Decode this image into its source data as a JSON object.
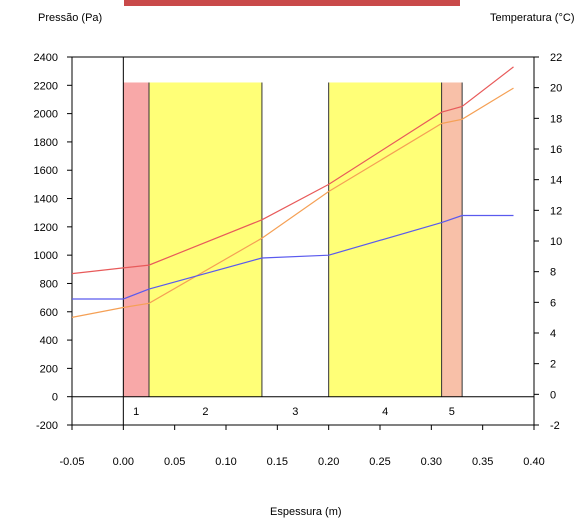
{
  "chart_data": {
    "type": "line",
    "title": "",
    "xlabel": "Espessura (m)",
    "ylabel": "Pressão (Pa)",
    "y2label": "Temperatura (°C)",
    "xlim": [
      -0.05,
      0.4
    ],
    "ylim": [
      -200,
      2400
    ],
    "y2lim": [
      -2,
      22
    ],
    "xticks": [
      "-0.05",
      "0.00",
      "0.05",
      "0.10",
      "0.15",
      "0.20",
      "0.25",
      "0.30",
      "0.35",
      "0.40"
    ],
    "yticks": [
      "2400",
      "2200",
      "2000",
      "1800",
      "1600",
      "1400",
      "1200",
      "1000",
      "800",
      "600",
      "400",
      "200",
      "0",
      "-200"
    ],
    "y2ticks": [
      "22",
      "20",
      "18",
      "16",
      "14",
      "12",
      "10",
      "8",
      "6",
      "4",
      "2",
      "0",
      "-2"
    ],
    "layers": [
      {
        "label": "1",
        "x0": 0.0,
        "x1": 0.025,
        "color": "#f8a8a8"
      },
      {
        "label": "2",
        "x0": 0.025,
        "x1": 0.135,
        "color": "#ffff77"
      },
      {
        "label": "3",
        "x0": 0.135,
        "x1": 0.2,
        "color": "#ffffff"
      },
      {
        "label": "4",
        "x0": 0.2,
        "x1": 0.31,
        "color": "#ffff77"
      },
      {
        "label": "5",
        "x0": 0.31,
        "x1": 0.33,
        "color": "#f8c0a8"
      }
    ],
    "series": [
      {
        "axis": "left",
        "color": "#e85a5a",
        "x": [
          -0.05,
          0.0,
          0.025,
          0.135,
          0.2,
          0.31,
          0.33,
          0.38
        ],
        "y": [
          870,
          910,
          930,
          1250,
          1500,
          2010,
          2050,
          2330
        ]
      },
      {
        "axis": "left",
        "color": "#f5a055",
        "x": [
          -0.05,
          0.0,
          0.025,
          0.135,
          0.2,
          0.31,
          0.33,
          0.38
        ],
        "y": [
          560,
          630,
          660,
          1120,
          1450,
          1930,
          1960,
          2180
        ]
      },
      {
        "axis": "left",
        "color": "#5a5aee",
        "x": [
          -0.05,
          0.0,
          0.025,
          0.135,
          0.2,
          0.31,
          0.33,
          0.38
        ],
        "y": [
          690,
          690,
          760,
          980,
          1000,
          1230,
          1280,
          1280
        ]
      }
    ]
  },
  "colors": {
    "top_bar": "#c94a4a",
    "axis": "#000000",
    "layer_border": "#333333"
  }
}
